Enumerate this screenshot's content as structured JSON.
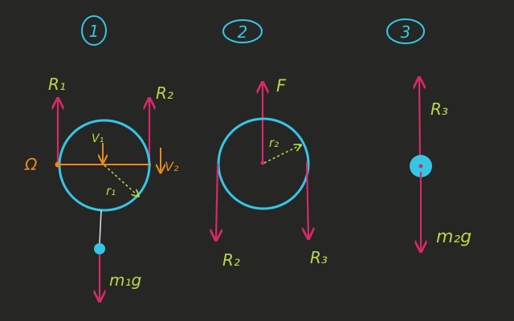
{
  "colors": {
    "background": "#262624",
    "wheel": "#35c6e6",
    "force": "#d6296a",
    "label_green": "#b7d84a",
    "kinematic": "#e88a1c",
    "step_number": "#35c6e6"
  },
  "steps": {
    "one": "1",
    "two": "2",
    "three": "3"
  },
  "diagram1": {
    "left_force": "R₁",
    "right_force": "R₂",
    "angular_velocity": "Ω",
    "v_center": "V₁",
    "v_edge": "V₂",
    "radius": "r₁",
    "weight": "m₁g"
  },
  "diagram2": {
    "applied_force": "F",
    "left_force": "R₂",
    "right_force": "R₃",
    "radius": "r₂"
  },
  "diagram3": {
    "up_force": "R₃",
    "weight": "m₂g"
  }
}
